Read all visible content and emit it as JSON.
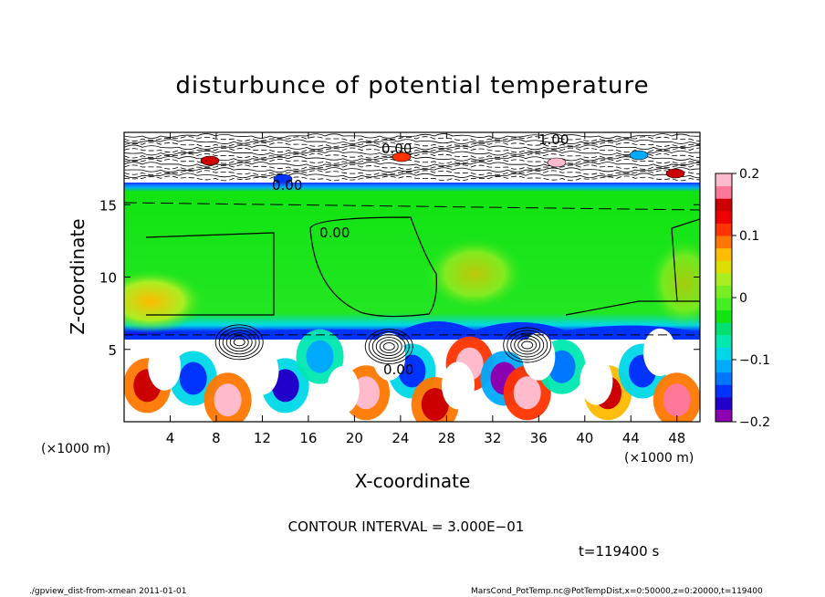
{
  "chart_data": {
    "type": "heatmap",
    "title": "disturbunce of potential temperature",
    "xlabel": "X-coordinate",
    "ylabel": "Z-coordinate",
    "x_unit": "(×1000 m)",
    "z_unit": "(×1000 m)",
    "x_ticks": [
      4,
      8,
      12,
      16,
      20,
      24,
      28,
      32,
      36,
      40,
      44,
      48
    ],
    "y_ticks": [
      5,
      10,
      15
    ],
    "xlim": [
      0,
      50
    ],
    "ylim": [
      0,
      20
    ],
    "colorbar": {
      "min": -0.2,
      "max": 0.2,
      "tick_labels": [
        "0.2",
        "0.1",
        "0",
        "−0.1",
        "−0.2"
      ],
      "tick_values": [
        0.2,
        0.1,
        0,
        -0.1,
        -0.2
      ],
      "colors": [
        "#8b00b0",
        "#2200cc",
        "#0033ff",
        "#0077ff",
        "#00aaff",
        "#00d8e8",
        "#00e8b0",
        "#00e070",
        "#11e411",
        "#44ee22",
        "#77ee22",
        "#aaee22",
        "#dddd00",
        "#ffbb00",
        "#ff7700",
        "#ff3300",
        "#ee0000",
        "#cc0000",
        "#ff7799",
        "#ffbbcc"
      ]
    },
    "contour_labels": [
      "0.00",
      "0.00",
      "0.00",
      "1.00",
      "0.00"
    ],
    "regions": [
      {
        "name": "upper-band",
        "z": [
          16.5,
          20
        ],
        "value": 0.0
      },
      {
        "name": "stable-layer",
        "z": [
          6.3,
          16.5
        ],
        "value": 0.0
      },
      {
        "name": "convective-layer",
        "z": [
          0,
          6
        ],
        "value": 0.0
      }
    ],
    "convective_cells": [
      {
        "x": 2,
        "z": 2.5,
        "value": 0.15
      },
      {
        "x": 6,
        "z": 3.0,
        "value": -0.15
      },
      {
        "x": 9,
        "z": 1.5,
        "value": 0.18
      },
      {
        "x": 14,
        "z": 2.5,
        "value": -0.18
      },
      {
        "x": 17,
        "z": 4.5,
        "value": -0.12
      },
      {
        "x": 21,
        "z": 2.0,
        "value": 0.18
      },
      {
        "x": 25,
        "z": 3.5,
        "value": -0.16
      },
      {
        "x": 27,
        "z": 1.2,
        "value": 0.15
      },
      {
        "x": 30,
        "z": 4.0,
        "value": 0.2
      },
      {
        "x": 33,
        "z": 3.0,
        "value": -0.2
      },
      {
        "x": 35,
        "z": 2.0,
        "value": 0.19
      },
      {
        "x": 38,
        "z": 3.8,
        "value": -0.14
      },
      {
        "x": 42,
        "z": 2.0,
        "value": 0.14
      },
      {
        "x": 45,
        "z": 3.5,
        "value": -0.15
      },
      {
        "x": 48,
        "z": 1.5,
        "value": 0.17
      }
    ]
  },
  "contour_interval": "CONTOUR INTERVAL = 3.000E−01",
  "time_label": "t=119400 s",
  "footer_left": "./gpview_dist-from-xmean  2011-01-01",
  "footer_right": "MarsCond_PotTemp.nc@PotTempDist,x=0:50000,z=0:20000,t=119400"
}
